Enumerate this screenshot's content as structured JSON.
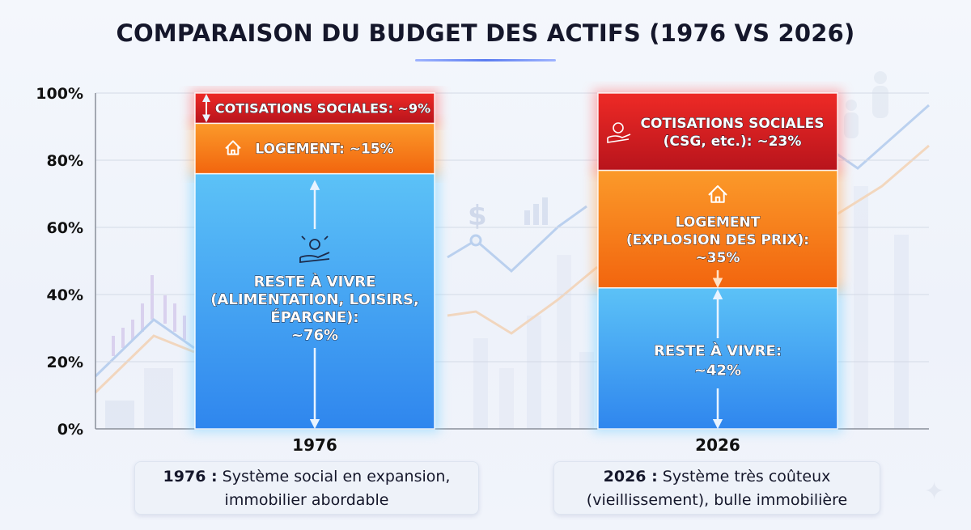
{
  "title": "COMPARAISON DU BUDGET DES ACTIFS (1976 VS 2026)",
  "colors": {
    "reste": "#3aa1f0",
    "logement": "#f77b13",
    "cotisations": "#d81f26",
    "cotisations_2026": "#c5161f",
    "axis_text": "#111111",
    "arrow": "#e6f2ff"
  },
  "chart_data": {
    "type": "bar",
    "stacked": true,
    "title": "COMPARAISON DU BUDGET DES ACTIFS (1976 VS 2026)",
    "categories": [
      "1976",
      "2026"
    ],
    "ylim": [
      0,
      100
    ],
    "yticks": [
      "0%",
      "20%",
      "40%",
      "60%",
      "80%",
      "100%"
    ],
    "grid": true,
    "series": [
      {
        "key": "reste",
        "values": [
          76,
          42
        ],
        "color": "#3aa1f0"
      },
      {
        "key": "logement",
        "values": [
          15,
          35
        ],
        "color": "#f77b13"
      },
      {
        "key": "cotisations",
        "values": [
          9,
          23
        ],
        "color": "#d81f26"
      }
    ],
    "labels": {
      "1976": {
        "reste": [
          "RESTE À VIVRE",
          "(ALIMENTATION, LOISIRS,",
          "ÉPARGNE):",
          "~76%"
        ],
        "logement": [
          "LOGEMENT: ~15%"
        ],
        "cotisations": [
          "COTISATIONS SOCIALES: ~9%"
        ]
      },
      "2026": {
        "reste": [
          "RESTE À VIVRE:",
          "~42%"
        ],
        "logement": [
          "LOGEMENT",
          "(EXPLOSION DES PRIX):",
          "~35%"
        ],
        "cotisations": [
          "COTISATIONS SOCIALES",
          "(CSG, etc.): ~23%"
        ]
      }
    }
  },
  "captions": {
    "c1976": {
      "year": "1976 :",
      "line1": "Système social en expansion,",
      "line2": "immobilier abordable"
    },
    "c2026": {
      "year": "2026 :",
      "line1": "Système très coûteux",
      "line2": "(vieillissement), bulle immobilière"
    }
  },
  "icons": {
    "reste_1976": "hand-money-icon",
    "logement_1976": "house-icon",
    "logement_2026": "house-icon",
    "cotisations_2026": "hand-coin-icon",
    "cotisations_1976": "double-arrow-icon"
  }
}
